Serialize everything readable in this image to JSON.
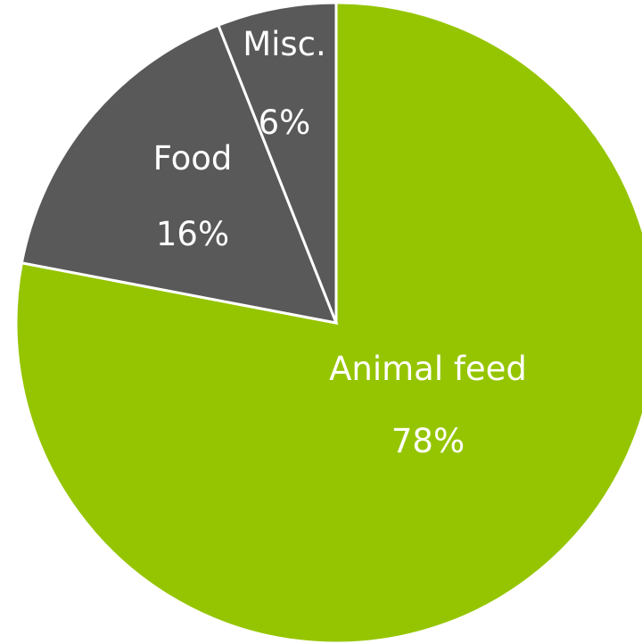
{
  "chart_data": {
    "type": "pie",
    "start": "top",
    "direction": "clockwise",
    "slices": [
      {
        "label": "Animal feed",
        "value": 78,
        "value_label": "78%",
        "color": "#95c500"
      },
      {
        "label": "Food",
        "value": 16,
        "value_label": "16%",
        "color": "#595959"
      },
      {
        "label": "Misc.",
        "value": 6,
        "value_label": "6%",
        "color": "#595959"
      }
    ]
  }
}
